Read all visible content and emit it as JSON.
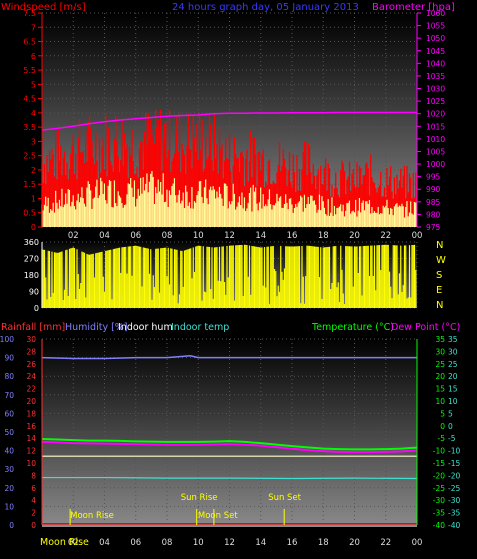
{
  "header": {
    "wind_title": "Windspeed [m/s]",
    "graph_title": "24 hours graph day, 05 January 2013",
    "baro_title": "Barometer [hpa]"
  },
  "lower_header": {
    "rain": "Rainfall [mm]",
    "hum": "Humidity [%]",
    "indoor_hum": "Indoor hum",
    "indoor_temp": "Indoor temp",
    "temp": "Temperature (°C)",
    "dew": "Dew Point (°C)"
  },
  "compass": [
    "N",
    "W",
    "S",
    "E",
    "N"
  ],
  "x_labels": [
    "02",
    "04",
    "06",
    "08",
    "10",
    "12",
    "14",
    "16",
    "18",
    "20",
    "22",
    "00"
  ],
  "events": [
    {
      "label": "Moon Rise",
      "hour": 1.8
    },
    {
      "label": "Sun Rise",
      "hour": 9.9
    },
    {
      "label": "Moon Set",
      "hour": 11.0
    },
    {
      "label": "Sun Set",
      "hour": 15.5
    }
  ],
  "bottom_axis_text": "Moon Rise",
  "colors": {
    "wind": "#ff0000",
    "gust": "#ffff99",
    "baro": "#ff00ff",
    "direction": "#ffff00",
    "humidity": "#8080ff",
    "indoor_temp": "#40e0d0",
    "indoor_hum": "#ffffff",
    "temperature": "#00ff00",
    "dewpoint": "#ff00ff",
    "rain": "#ff0000"
  },
  "chart_data": [
    {
      "type": "line",
      "title": "24 hours graph day, 05 January 2013",
      "xlabel": "hour",
      "ylabel_left": "Windspeed [m/s]",
      "ylabel_right": "Barometer [hpa]",
      "y_left_ticks": [
        "0",
        "0.5",
        "1",
        "1.5",
        "2",
        "2.5",
        "3",
        "3.5",
        "4",
        "4.5",
        "5",
        "5.5",
        "6",
        "6.5",
        "7",
        "7.5"
      ],
      "y_right_ticks": [
        "975",
        "980",
        "985",
        "990",
        "995",
        "1000",
        "1005",
        "1010",
        "1015",
        "1020",
        "1025",
        "1030",
        "1035",
        "1040",
        "1045",
        "1050",
        "1055",
        "1060"
      ],
      "ylim_left": [
        0,
        7.5
      ],
      "ylim_right": [
        975,
        1060
      ],
      "series": [
        {
          "name": "Barometer [hpa]",
          "x": [
            0,
            1,
            2,
            3,
            4,
            5,
            6,
            7,
            8,
            9,
            10,
            11,
            12,
            13,
            14,
            15,
            16,
            17,
            18,
            19,
            20,
            21,
            22,
            23,
            24
          ],
          "values": [
            1013.5,
            1014.2,
            1015,
            1016,
            1016.8,
            1017.5,
            1018,
            1018.5,
            1019,
            1019.3,
            1019.5,
            1020,
            1020.2,
            1020.2,
            1020.3,
            1020.3,
            1020.4,
            1020.4,
            1020.4,
            1020.5,
            1020.5,
            1020.5,
            1020.5,
            1020.5,
            1020.5
          ]
        },
        {
          "name": "Windspeed",
          "x": [
            0,
            1,
            2,
            3,
            4,
            5,
            6,
            7,
            8,
            9,
            10,
            11,
            12,
            13,
            14,
            15,
            16,
            17,
            18,
            19,
            20,
            21,
            22,
            23,
            24
          ],
          "values": [
            1.0,
            1.2,
            1.3,
            1.5,
            1.6,
            1.7,
            1.6,
            1.8,
            1.7,
            1.6,
            1.5,
            1.6,
            1.4,
            1.4,
            1.3,
            1.2,
            1.1,
            1.2,
            1.0,
            0.9,
            0.9,
            1.0,
            0.9,
            0.8,
            0.9
          ]
        },
        {
          "name": "Gust",
          "x": [
            0,
            1,
            2,
            3,
            4,
            5,
            6,
            7,
            8,
            9,
            10,
            11,
            12,
            13,
            14,
            15,
            16,
            17,
            18,
            19,
            20,
            21,
            22,
            23,
            24
          ],
          "values": [
            2.4,
            2.6,
            2.8,
            3.0,
            3.1,
            3.2,
            3.0,
            3.2,
            3.4,
            3.1,
            3.2,
            3.0,
            2.6,
            2.6,
            2.5,
            2.4,
            2.2,
            2.3,
            2.0,
            1.8,
            1.7,
            1.9,
            1.7,
            1.6,
            1.6
          ]
        }
      ]
    },
    {
      "type": "scatter",
      "title": "",
      "ylabel": "Wind direction",
      "y_ticks": [
        "0",
        "90",
        "180",
        "270",
        "360"
      ],
      "ylim": [
        0,
        360
      ],
      "series": [
        {
          "name": "Direction",
          "x": [
            0,
            1,
            2,
            3,
            4,
            5,
            6,
            7,
            8,
            9,
            10,
            11,
            12,
            13,
            14,
            15,
            16,
            17,
            18,
            19,
            20,
            21,
            22,
            23,
            24
          ],
          "values": [
            320,
            300,
            330,
            290,
            310,
            330,
            340,
            320,
            330,
            310,
            340,
            330,
            340,
            345,
            330,
            340,
            335,
            340,
            330,
            340,
            335,
            340,
            345,
            340,
            345
          ]
        }
      ]
    },
    {
      "type": "line",
      "title": "",
      "ylabel_left": "Humidity [%]",
      "ylabel_left2": "Rainfall [mm]",
      "ylabel_right": "Temperature (°C)",
      "ylabel_right2": "Dew Point (°C)",
      "y_hum_ticks": [
        "0",
        "10",
        "20",
        "30",
        "40",
        "50",
        "60",
        "70",
        "80",
        "90",
        "100"
      ],
      "y_rain_ticks": [
        "0",
        "2",
        "4",
        "6",
        "8",
        "10",
        "12",
        "14",
        "16",
        "18",
        "20",
        "22",
        "24",
        "26",
        "28",
        "30"
      ],
      "y_temp_ticks": [
        "35",
        "30",
        "25",
        "20",
        "15",
        "10",
        "5",
        "0",
        "-5",
        "-10",
        "-15",
        "-20",
        "-25",
        "-30",
        "-35",
        "-40"
      ],
      "ylim_hum": [
        0,
        100
      ],
      "ylim_temp": [
        -40,
        35
      ],
      "series": [
        {
          "name": "Humidity [%]",
          "x": [
            0,
            2,
            4,
            6,
            8,
            9.5,
            10,
            12,
            14,
            16,
            18,
            20,
            22,
            24
          ],
          "values": [
            90,
            89.5,
            89.5,
            90,
            90,
            91,
            90,
            90,
            90,
            90,
            90,
            90,
            90,
            90
          ]
        },
        {
          "name": "Indoor temp",
          "x": [
            0,
            4,
            8,
            12,
            16,
            20,
            24
          ],
          "values": [
            25.5,
            25.5,
            25.2,
            25.2,
            25.0,
            25.2,
            25.0
          ]
        },
        {
          "name": "Indoor hum",
          "x": [
            0,
            6,
            10,
            12,
            16,
            20,
            24
          ],
          "values": [
            37,
            37,
            37,
            37,
            37,
            37,
            37
          ]
        },
        {
          "name": "Temperature (°C)",
          "x": [
            0,
            1,
            2,
            3,
            4,
            5,
            6,
            7,
            8,
            9,
            10,
            11,
            12,
            13,
            14,
            15,
            16,
            17,
            18,
            19,
            20,
            21,
            22,
            23,
            24
          ],
          "values": [
            -5.3,
            -5.5,
            -5.8,
            -6,
            -6,
            -6.1,
            -6.3,
            -6.4,
            -6.5,
            -6.5,
            -6.5,
            -6.4,
            -6.2,
            -6.5,
            -7,
            -7.6,
            -8.2,
            -8.7,
            -9.2,
            -9.4,
            -9.5,
            -9.5,
            -9.4,
            -9.2,
            -8.8
          ]
        },
        {
          "name": "Dew Point (°C)",
          "x": [
            0,
            1,
            2,
            3,
            4,
            5,
            6,
            7,
            8,
            9,
            10,
            11,
            12,
            13,
            14,
            15,
            16,
            17,
            18,
            19,
            20,
            21,
            22,
            23,
            24
          ],
          "values": [
            -6.5,
            -6.7,
            -7,
            -7.1,
            -7.2,
            -7.3,
            -7.4,
            -7.5,
            -7.6,
            -7.6,
            -7.6,
            -7.5,
            -7.4,
            -7.6,
            -8,
            -8.6,
            -9.2,
            -9.8,
            -10.2,
            -10.5,
            -10.6,
            -10.6,
            -10.5,
            -10.3,
            -9.9
          ]
        },
        {
          "name": "Rainfall [mm]",
          "x": [
            0,
            24
          ],
          "values": [
            0,
            0
          ]
        }
      ]
    }
  ]
}
